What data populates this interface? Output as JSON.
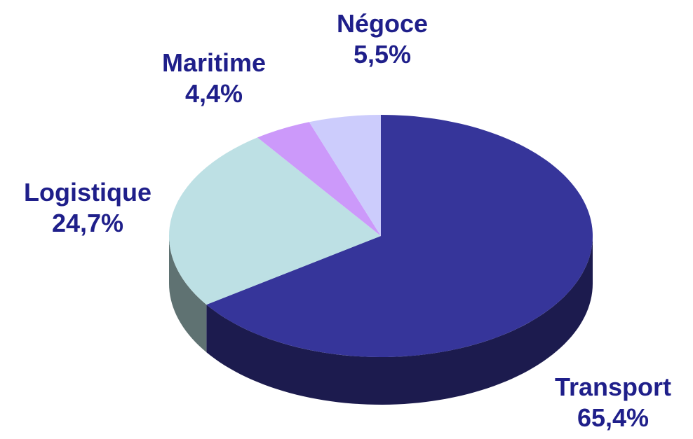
{
  "chart_data": {
    "type": "pie",
    "style": "3d",
    "categories": [
      "Transport",
      "Logistique",
      "Maritime",
      "Négoce"
    ],
    "values": [
      65.4,
      24.7,
      4.4,
      5.5
    ],
    "labels": [
      "65,4%",
      "24,7%",
      "4,4%",
      "5,5%"
    ],
    "colors": [
      "#36359a",
      "#bde0e4",
      "#cc99fa",
      "#ccccfc"
    ],
    "side_colors": [
      "#1c1b4e",
      "#5f7272",
      "#6e4f8c",
      "#6f6f8f"
    ],
    "label_color": "#1f1f8a",
    "legend": "none"
  }
}
